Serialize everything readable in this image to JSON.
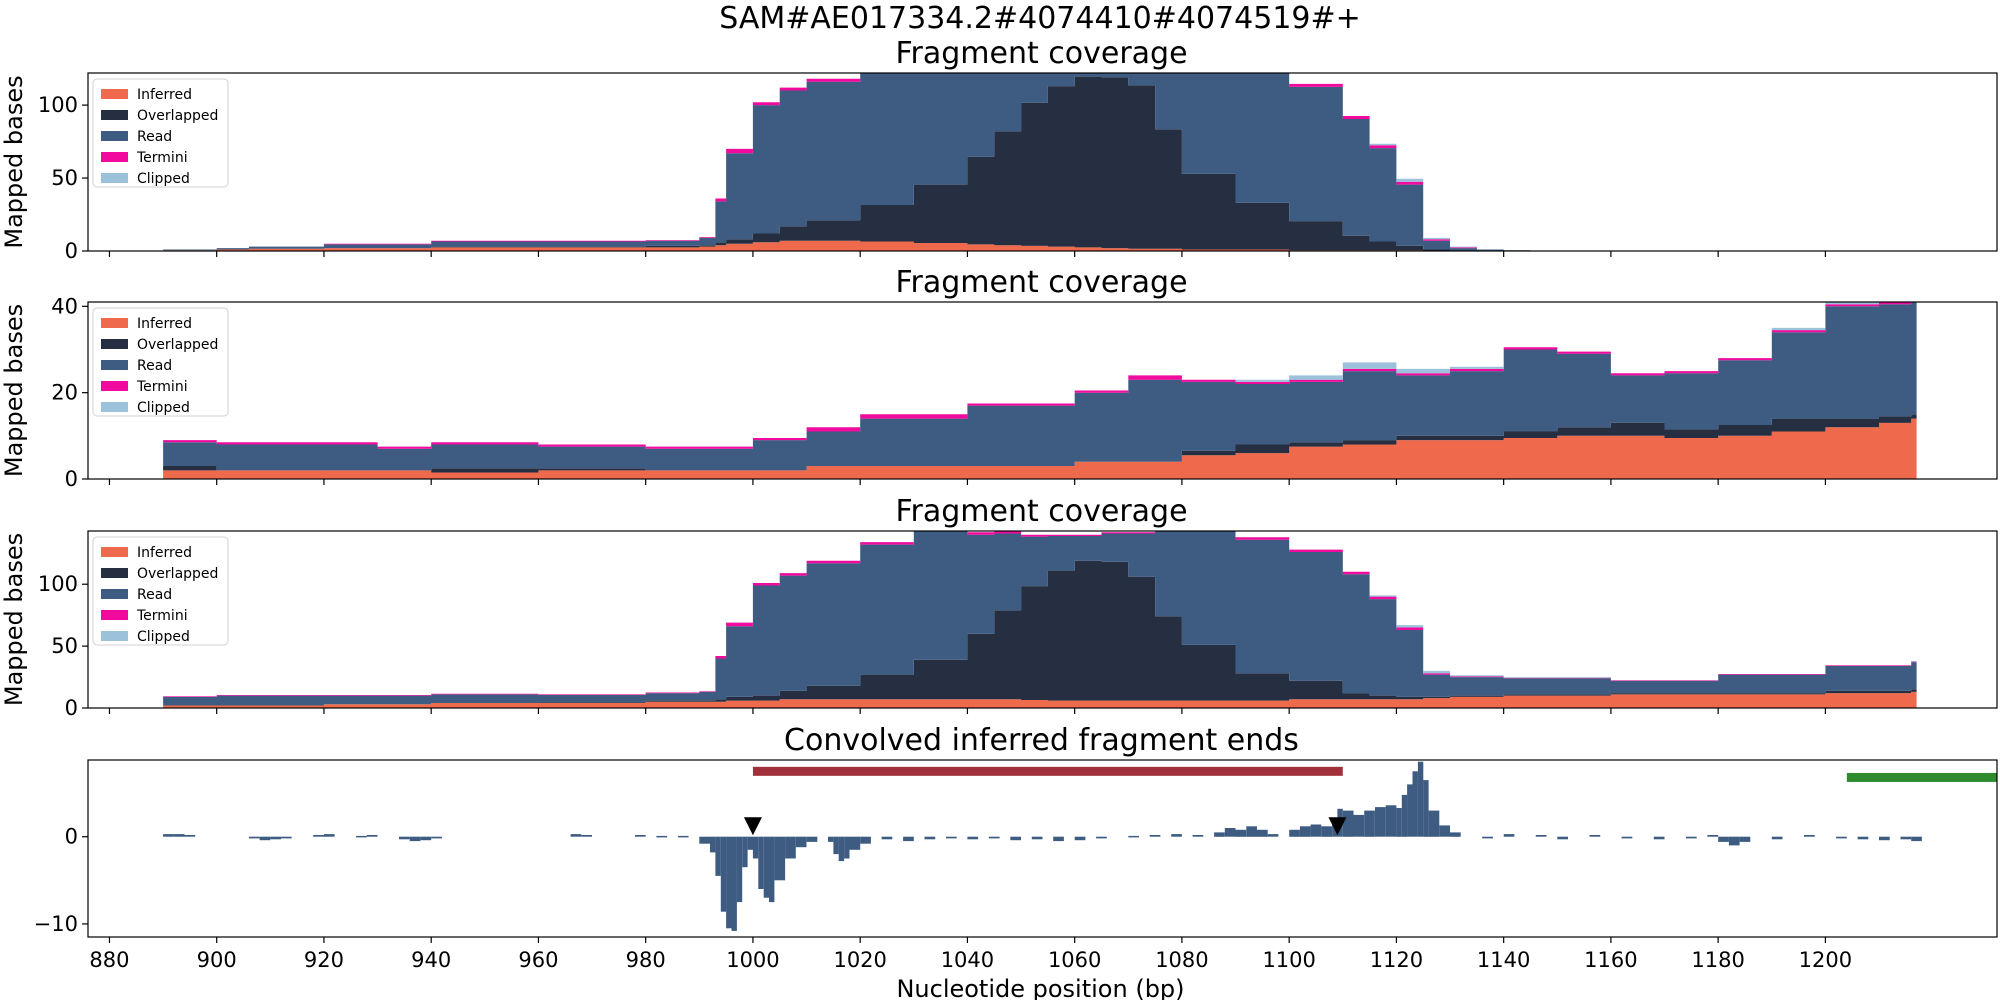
{
  "figure": {
    "title": "SAM#AE017334.2#4074410#4074519#+"
  },
  "colors": {
    "inferred": "#ef6a4c",
    "overlapped": "#262f42",
    "read": "#3e5c82",
    "termini": "#f00a9e",
    "clipped": "#9cc2db",
    "conv": "#3e5c82",
    "bar_red": "#a0303a",
    "bar_green": "#2e8b2e",
    "marker": "#000000"
  },
  "chart_data": [
    {
      "type": "area",
      "title": "Fragment coverage",
      "ylabel": "Mapped bases",
      "xlabel": "",
      "xlim": [
        876,
        1232
      ],
      "ylim": [
        0,
        122
      ],
      "yticks": [
        0,
        50,
        100
      ],
      "legend": "top-left",
      "legend_entries": [
        "Inferred",
        "Overlapped",
        "Read",
        "Termini",
        "Clipped"
      ],
      "x": [
        880,
        890,
        900,
        906,
        920,
        940,
        960,
        980,
        990,
        993,
        995,
        1000,
        1005,
        1010,
        1020,
        1030,
        1040,
        1045,
        1050,
        1055,
        1060,
        1065,
        1070,
        1075,
        1080,
        1090,
        1100,
        1110,
        1115,
        1120,
        1125,
        1130,
        1135,
        1140,
        1145
      ],
      "series": [
        {
          "name": "Inferred",
          "values": [
            0,
            0.5,
            1,
            1.5,
            2,
            2.5,
            2.5,
            2.5,
            3,
            4,
            5,
            6,
            7,
            7,
            6.5,
            5.5,
            4.5,
            4,
            3.5,
            3,
            2.5,
            2,
            1.5,
            1.5,
            1,
            1,
            0.5,
            0.5,
            0.5,
            0.5,
            0,
            0,
            0,
            0,
            0
          ]
        },
        {
          "name": "Overlapped",
          "values": [
            0,
            0,
            0,
            0,
            0,
            0.5,
            0.5,
            1,
            1,
            2,
            3,
            6,
            10,
            14,
            25,
            40,
            60,
            78,
            98,
            110,
            117,
            117,
            112,
            82,
            52,
            32,
            20,
            10,
            6,
            3,
            1,
            0,
            0,
            0,
            0
          ]
        },
        {
          "name": "Read",
          "values": [
            0,
            0.5,
            1,
            1.5,
            2.5,
            3.5,
            3.5,
            3.5,
            5,
            28,
            59,
            88,
            93,
            95,
            100,
            108,
            112,
            113,
            113,
            113,
            112,
            111,
            111,
            110,
            108,
            99,
            92,
            80,
            64,
            42,
            6,
            2,
            1,
            0.5,
            0
          ]
        },
        {
          "name": "Termini",
          "values": [
            0,
            0,
            0,
            0,
            0.5,
            0.5,
            0.5,
            0.5,
            0.5,
            2,
            3,
            2,
            2,
            2,
            2,
            2,
            2,
            2,
            1.5,
            1,
            1,
            1,
            1,
            1,
            1.5,
            2,
            2,
            2,
            2,
            2,
            1,
            0.5,
            0,
            0,
            0
          ]
        },
        {
          "name": "Clipped",
          "values": [
            0,
            0,
            0,
            0,
            0,
            0,
            0,
            0,
            0,
            0,
            0,
            0,
            0,
            0,
            0,
            0,
            0,
            0,
            0,
            0,
            0,
            0,
            0,
            0,
            0,
            0,
            0,
            0,
            1,
            2,
            1,
            0.5,
            0,
            0,
            0
          ]
        }
      ]
    },
    {
      "type": "area",
      "title": "Fragment coverage",
      "ylabel": "Mapped bases",
      "xlabel": "",
      "xlim": [
        876,
        1232
      ],
      "ylim": [
        0,
        41
      ],
      "yticks": [
        0,
        20,
        40
      ],
      "legend": "top-left",
      "legend_entries": [
        "Inferred",
        "Overlapped",
        "Read",
        "Termini",
        "Clipped"
      ],
      "x": [
        890,
        900,
        920,
        930,
        940,
        960,
        980,
        1000,
        1010,
        1020,
        1040,
        1060,
        1070,
        1080,
        1090,
        1100,
        1110,
        1120,
        1130,
        1140,
        1150,
        1160,
        1170,
        1180,
        1190,
        1200,
        1210,
        1216
      ],
      "series": [
        {
          "name": "Inferred",
          "values": [
            2,
            2,
            2,
            2,
            1.5,
            2,
            2,
            2,
            3,
            3,
            3,
            4,
            4,
            5.5,
            6,
            7.5,
            8,
            9,
            9,
            9.5,
            10,
            10,
            9.5,
            10,
            11,
            12,
            13,
            14
          ]
        },
        {
          "name": "Overlapped",
          "values": [
            1,
            0,
            0,
            0,
            1,
            0.5,
            0,
            0,
            0,
            0,
            0,
            0,
            0,
            1,
            2,
            1,
            1,
            1,
            1,
            1.5,
            2,
            3,
            2,
            2.5,
            3,
            2,
            1.5,
            1
          ]
        },
        {
          "name": "Read",
          "values": [
            5.5,
            6,
            6,
            5,
            5.5,
            5,
            5,
            7,
            8,
            11,
            14,
            16,
            19,
            16,
            14,
            14,
            16,
            14,
            15,
            19,
            17,
            11,
            13,
            15,
            20,
            26,
            26,
            27
          ]
        },
        {
          "name": "Termini",
          "values": [
            0.5,
            0.5,
            0.5,
            0.5,
            0.5,
            0.5,
            0.5,
            0.5,
            1,
            1,
            0.5,
            0.5,
            1,
            0.5,
            0.5,
            0.5,
            0.5,
            0.5,
            0.5,
            0.5,
            0.5,
            0.5,
            0.5,
            0.5,
            0.5,
            0.5,
            0.5,
            0.5
          ]
        },
        {
          "name": "Clipped",
          "values": [
            0,
            0,
            0,
            0,
            0,
            0,
            0,
            0,
            0,
            0,
            0,
            0,
            0,
            0,
            0.5,
            1,
            1.5,
            1,
            0.5,
            0,
            0,
            0,
            0,
            0,
            0.5,
            1,
            1,
            0.5
          ]
        }
      ]
    },
    {
      "type": "area",
      "title": "Fragment coverage",
      "ylabel": "Mapped bases",
      "xlabel": "",
      "xlim": [
        876,
        1232
      ],
      "ylim": [
        0,
        143
      ],
      "yticks": [
        0,
        50,
        100
      ],
      "legend": "top-left",
      "legend_entries": [
        "Inferred",
        "Overlapped",
        "Read",
        "Termini",
        "Clipped"
      ],
      "x": [
        890,
        900,
        920,
        940,
        960,
        980,
        990,
        993,
        995,
        1000,
        1005,
        1010,
        1020,
        1030,
        1040,
        1045,
        1050,
        1055,
        1060,
        1065,
        1070,
        1075,
        1080,
        1090,
        1100,
        1110,
        1115,
        1120,
        1125,
        1130,
        1140,
        1160,
        1180,
        1200,
        1216
      ],
      "series": [
        {
          "name": "Inferred",
          "values": [
            2,
            2,
            3,
            4,
            4,
            5,
            5,
            5,
            6,
            6,
            7,
            7,
            7,
            7,
            7,
            7,
            6.5,
            6,
            6,
            6,
            6,
            6,
            6,
            6,
            7,
            7,
            7,
            7,
            8,
            9,
            10,
            11,
            11,
            12,
            13
          ]
        },
        {
          "name": "Overlapped",
          "values": [
            0,
            0,
            0,
            0,
            0.5,
            1,
            1,
            2,
            3,
            4,
            7,
            11,
            20,
            32,
            53,
            72,
            92,
            105,
            113,
            112,
            100,
            68,
            45,
            22,
            15,
            5,
            3,
            2,
            1,
            1,
            1,
            1,
            1,
            2,
            2
          ]
        },
        {
          "name": "Read",
          "values": [
            7,
            8,
            7,
            7,
            6,
            6,
            7,
            33,
            57,
            89,
            93,
            99,
            105,
            105,
            80,
            62,
            40,
            28,
            20,
            23,
            35,
            70,
            92,
            108,
            104,
            96,
            78,
            54,
            18,
            15,
            13,
            10,
            15,
            20,
            22
          ]
        },
        {
          "name": "Termini",
          "values": [
            0.5,
            0.5,
            0.5,
            0.5,
            0.5,
            0.5,
            0.5,
            2,
            3,
            2,
            2,
            2,
            2,
            2,
            2,
            2,
            1.5,
            1,
            1,
            1,
            1,
            1,
            1.5,
            2,
            2,
            2,
            2,
            2,
            1,
            0.5,
            0.5,
            0.5,
            0.5,
            0.5,
            0.5
          ]
        },
        {
          "name": "Clipped",
          "values": [
            0,
            0,
            0,
            0,
            0,
            0,
            0,
            0,
            0,
            0,
            0,
            0,
            0,
            0,
            0,
            0,
            0,
            0,
            0,
            0,
            0,
            0,
            0,
            0,
            0,
            0,
            1,
            2,
            2,
            1,
            0.5,
            0,
            0,
            0,
            0.5
          ]
        }
      ]
    },
    {
      "type": "bar",
      "title": "Convolved inferred fragment ends",
      "ylabel": "",
      "xlabel": "Nucleotide position (bp)",
      "xlim": [
        876,
        1232
      ],
      "ylim": [
        -11.5,
        8.8
      ],
      "yticks": [
        -10,
        0
      ],
      "xticks": [
        880,
        900,
        920,
        940,
        960,
        980,
        1000,
        1020,
        1040,
        1060,
        1080,
        1100,
        1120,
        1140,
        1160,
        1180,
        1200
      ],
      "x": [
        890,
        892,
        894,
        906,
        908,
        910,
        912,
        918,
        920,
        926,
        928,
        934,
        936,
        938,
        940,
        966,
        968,
        978,
        982,
        986,
        990,
        992,
        993,
        994,
        995,
        996,
        997,
        998,
        999,
        1000,
        1001,
        1002,
        1003,
        1004,
        1006,
        1008,
        1010,
        1014,
        1015,
        1016,
        1017,
        1018,
        1020,
        1024,
        1028,
        1032,
        1036,
        1040,
        1044,
        1048,
        1052,
        1056,
        1060,
        1064,
        1070,
        1074,
        1078,
        1082,
        1086,
        1088,
        1090,
        1092,
        1094,
        1096,
        1100,
        1102,
        1104,
        1106,
        1108,
        1109,
        1110,
        1112,
        1114,
        1116,
        1118,
        1120,
        1121,
        1122,
        1123,
        1124,
        1125,
        1126,
        1128,
        1130,
        1136,
        1140,
        1146,
        1150,
        1156,
        1162,
        1168,
        1174,
        1178,
        1180,
        1182,
        1184,
        1190,
        1196,
        1202,
        1206,
        1210,
        1214,
        1216
      ],
      "values": [
        0.3,
        0.3,
        0.2,
        -0.2,
        -0.4,
        -0.3,
        -0.2,
        0.2,
        0.3,
        0.1,
        0.2,
        -0.3,
        -0.5,
        -0.4,
        -0.2,
        0.3,
        0.2,
        0.2,
        0.1,
        0.1,
        -0.8,
        -1.8,
        -4.5,
        -8.6,
        -10.5,
        -10.8,
        -7.5,
        -3.5,
        -1.5,
        -2.5,
        -6.0,
        -7.0,
        -7.5,
        -5.0,
        -2.5,
        -1.2,
        -0.6,
        -0.6,
        -2.0,
        -2.8,
        -2.5,
        -1.5,
        -0.8,
        -0.3,
        -0.5,
        -0.3,
        -0.2,
        -0.3,
        -0.2,
        -0.4,
        -0.3,
        -0.5,
        -0.4,
        -0.2,
        0.1,
        0.2,
        0.3,
        0.2,
        0.5,
        1.0,
        0.8,
        1.2,
        0.8,
        0.3,
        0.8,
        1.2,
        1.4,
        1.2,
        2.0,
        3.2,
        3.0,
        2.5,
        3.0,
        3.4,
        3.6,
        3.3,
        4.8,
        6.0,
        7.5,
        8.6,
        6.5,
        3.0,
        1.3,
        0.5,
        -0.2,
        0.3,
        0.2,
        -0.3,
        0.2,
        -0.2,
        -0.3,
        -0.2,
        0.2,
        -0.6,
        -1.0,
        -0.6,
        -0.3,
        0.2,
        -0.2,
        -0.3,
        -0.4,
        -0.3,
        -0.5
      ],
      "annotations": [
        {
          "kind": "bar",
          "color": "bar_red",
          "x0": 1000,
          "x1": 1110,
          "y": 7.5
        },
        {
          "kind": "bar",
          "color": "bar_green",
          "x0": 1204,
          "x1": 1232,
          "y": 6.8
        },
        {
          "kind": "marker",
          "symbol": "triangle-down",
          "x": 1000,
          "y": 1.2
        },
        {
          "kind": "marker",
          "symbol": "triangle-down",
          "x": 1109,
          "y": 1.2
        }
      ]
    }
  ]
}
